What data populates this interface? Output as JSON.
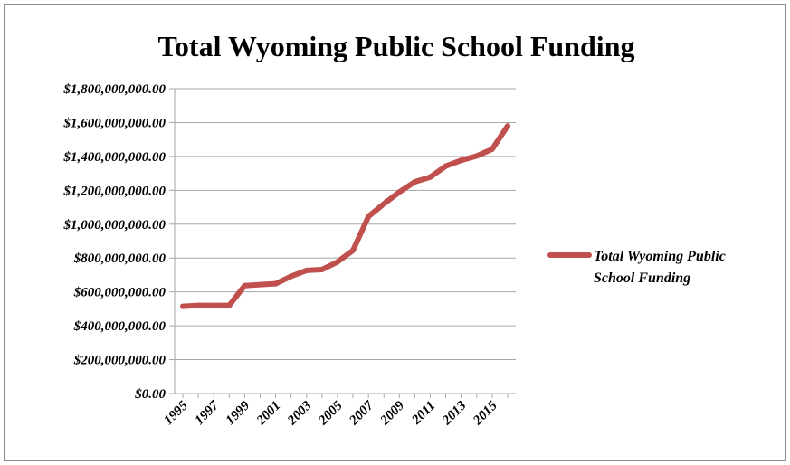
{
  "chart_data": {
    "type": "line",
    "title": "Total Wyoming Public School Funding",
    "xlabel": "",
    "ylabel": "",
    "ylim": [
      0,
      1800000000
    ],
    "y_ticks": [
      0,
      200000000,
      400000000,
      600000000,
      800000000,
      1000000000,
      1200000000,
      1400000000,
      1600000000,
      1800000000
    ],
    "y_tick_labels": [
      "$0.00",
      "$200,000,000.00",
      "$400,000,000.00",
      "$600,000,000.00",
      "$800,000,000.00",
      "$1,000,000,000.00",
      "$1,200,000,000.00",
      "$1,400,000,000.00",
      "$1,600,000,000.00",
      "$1,800,000,000.00"
    ],
    "x": [
      1995,
      1996,
      1997,
      1998,
      1999,
      2000,
      2001,
      2002,
      2003,
      2004,
      2005,
      2006,
      2007,
      2008,
      2009,
      2010,
      2011,
      2012,
      2013,
      2014,
      2015,
      2016
    ],
    "x_tick_labels": [
      "1995",
      "1997",
      "1999",
      "2001",
      "2003",
      "2005",
      "2007",
      "2009",
      "2011",
      "2013",
      "2015"
    ],
    "grid": true,
    "legend_position": "right",
    "series": [
      {
        "name": "Total Wyoming Public School Funding",
        "color": "#c0504d",
        "values": [
          515000000,
          520000000,
          520000000,
          520000000,
          637000000,
          643000000,
          648000000,
          692000000,
          727000000,
          732000000,
          777000000,
          845000000,
          1045000000,
          1120000000,
          1190000000,
          1250000000,
          1278000000,
          1343000000,
          1377000000,
          1403000000,
          1443000000,
          1580000000
        ]
      }
    ]
  }
}
